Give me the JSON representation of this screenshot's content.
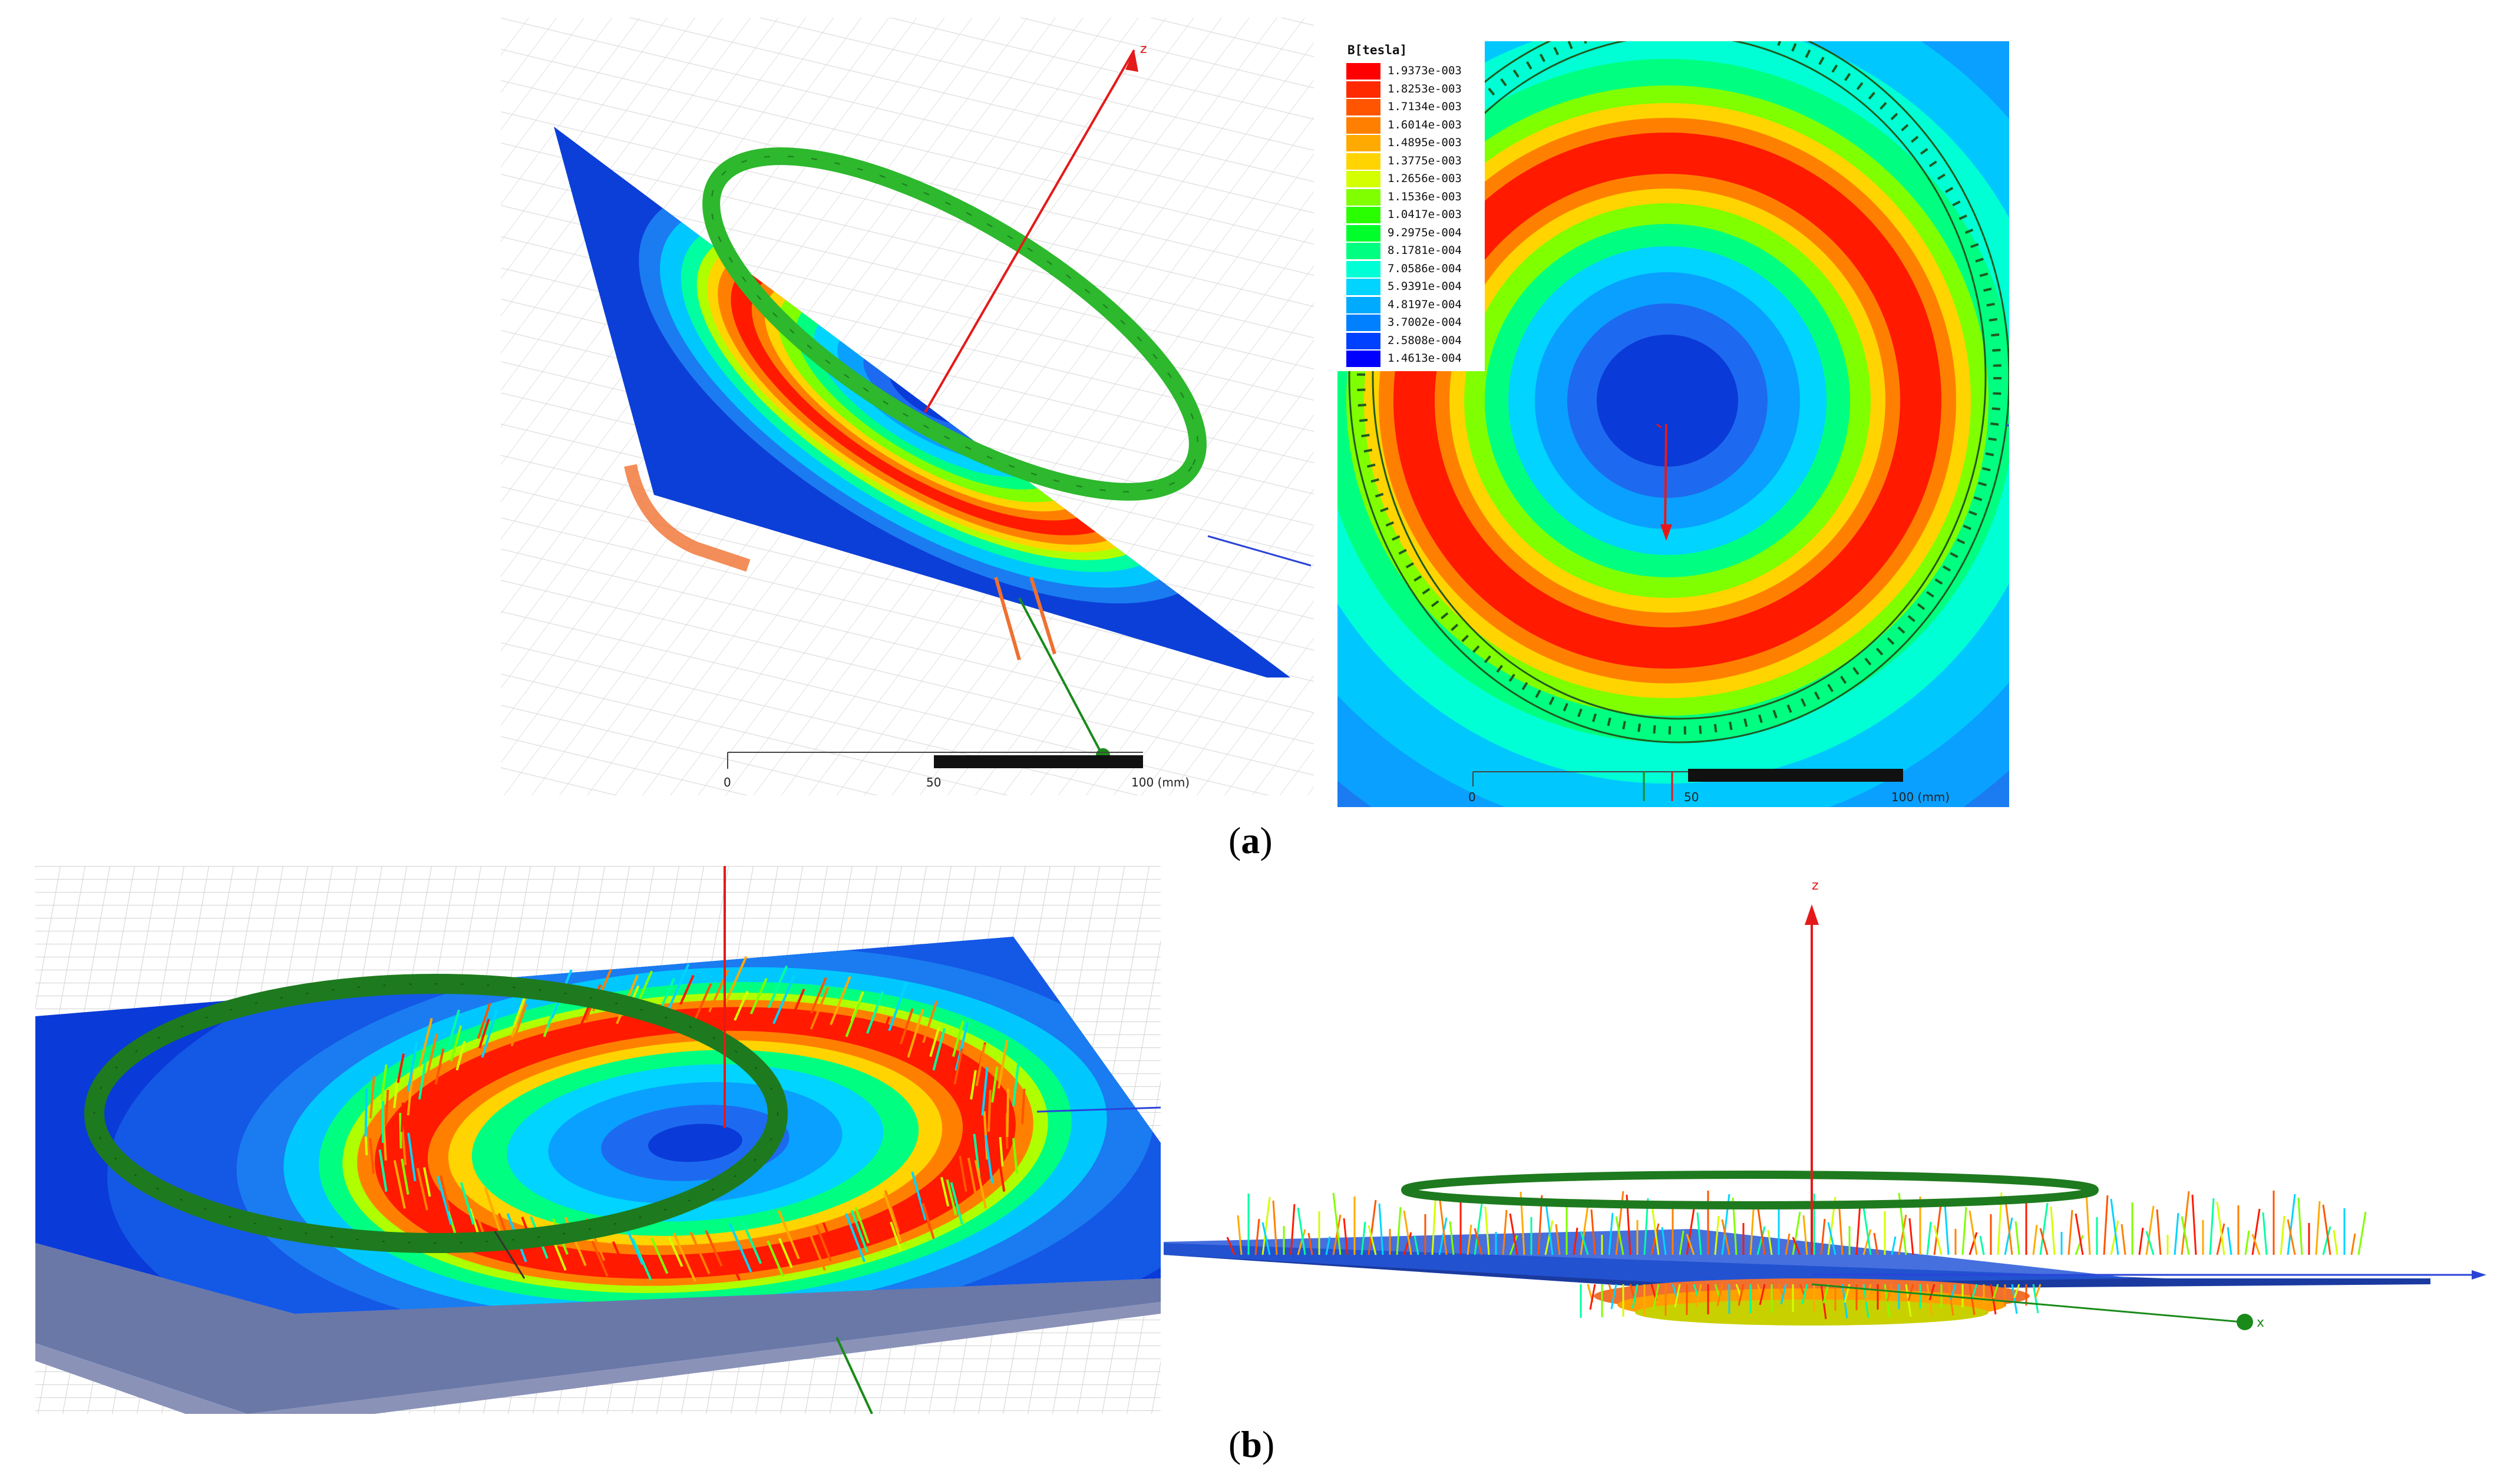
{
  "captions": {
    "a": "a",
    "b": "b"
  },
  "legend": {
    "title": "B[tesla]",
    "entries": [
      {
        "value": "1.9373e-003",
        "color": "#ff0000"
      },
      {
        "value": "1.8253e-003",
        "color": "#ff2a00"
      },
      {
        "value": "1.7134e-003",
        "color": "#ff5500"
      },
      {
        "value": "1.6014e-003",
        "color": "#ff8000"
      },
      {
        "value": "1.4895e-003",
        "color": "#ffaa00"
      },
      {
        "value": "1.3775e-003",
        "color": "#ffd400"
      },
      {
        "value": "1.2656e-003",
        "color": "#d4ff00"
      },
      {
        "value": "1.1536e-003",
        "color": "#80ff00"
      },
      {
        "value": "1.0417e-003",
        "color": "#2aff00"
      },
      {
        "value": "9.2975e-004",
        "color": "#00ff2a"
      },
      {
        "value": "8.1781e-004",
        "color": "#00ff80"
      },
      {
        "value": "7.0586e-004",
        "color": "#00ffd4"
      },
      {
        "value": "5.9391e-004",
        "color": "#00d4ff"
      },
      {
        "value": "4.8197e-004",
        "color": "#00aaff"
      },
      {
        "value": "3.7002e-004",
        "color": "#0080ff"
      },
      {
        "value": "2.5808e-004",
        "color": "#0040ff"
      },
      {
        "value": "1.4613e-004",
        "color": "#0000ff"
      }
    ]
  },
  "rulers": {
    "left": {
      "ticks": [
        "0",
        "50",
        "100 (mm)"
      ]
    },
    "right": {
      "ticks": [
        "0",
        "50",
        "100 (mm)"
      ]
    }
  },
  "axes": {
    "z": "z",
    "x": "x"
  },
  "colors": {
    "coil": "#2db82d",
    "coil_dark": "#1f7a1f",
    "axis_z": "#e41a1a",
    "axis_x": "#2a44d8",
    "axis_y": "#1a8a1a"
  }
}
